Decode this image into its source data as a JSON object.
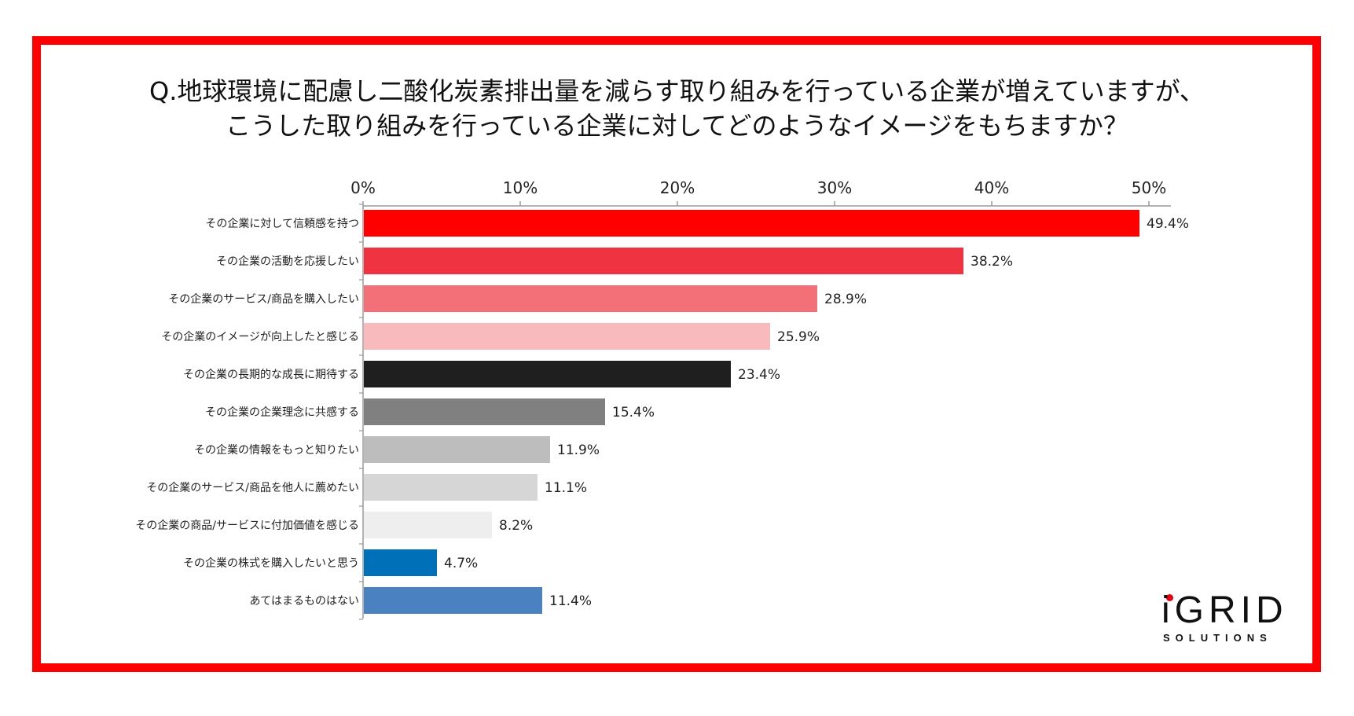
{
  "title": {
    "line1": "Q.地球環境に配慮し二酸化炭素排出量を減らす取り組みを行っている企業が増えていますが、",
    "line2": "こうした取り組みを行っている企業に対してどのようなイメージをもちますか？"
  },
  "chart_data": {
    "type": "bar",
    "orientation": "horizontal",
    "xlim": [
      0,
      50
    ],
    "ticks": [
      "0%",
      "10%",
      "20%",
      "30%",
      "40%",
      "50%"
    ],
    "tick_values": [
      0,
      10,
      20,
      30,
      40,
      50
    ],
    "categories": [
      "その企業に対して信頼感を持つ",
      "その企業の活動を応援したい",
      "その企業のサービス/商品を購入したい",
      "その企業のイメージが向上したと感じる",
      "その企業の長期的な成長に期待する",
      "その企業の企業理念に共感する",
      "その企業の情報をもっと知りたい",
      "その企業のサービス/商品を他人に薦めたい",
      "その企業の商品/サービスに付加価値を感じる",
      "その企業の株式を購入したいと思う",
      "あてはまるものはない"
    ],
    "values": [
      49.4,
      38.2,
      28.9,
      25.9,
      23.4,
      15.4,
      11.9,
      11.1,
      8.2,
      4.7,
      11.4
    ],
    "value_labels": [
      "49.4%",
      "38.2%",
      "28.9%",
      "25.9%",
      "23.4%",
      "15.4%",
      "11.9%",
      "11.1%",
      "8.2%",
      "4.7%",
      "11.4%"
    ],
    "colors": [
      "#ff0000",
      "#ef3340",
      "#f47079",
      "#f9babd",
      "#1f1f1f",
      "#808080",
      "#bdbdbd",
      "#d6d6d6",
      "#eeeeee",
      "#0070b8",
      "#4a81c0"
    ]
  },
  "logo": {
    "main": "iGRID",
    "sub": "SOLUTIONS",
    "accent_color": "#e60012"
  }
}
